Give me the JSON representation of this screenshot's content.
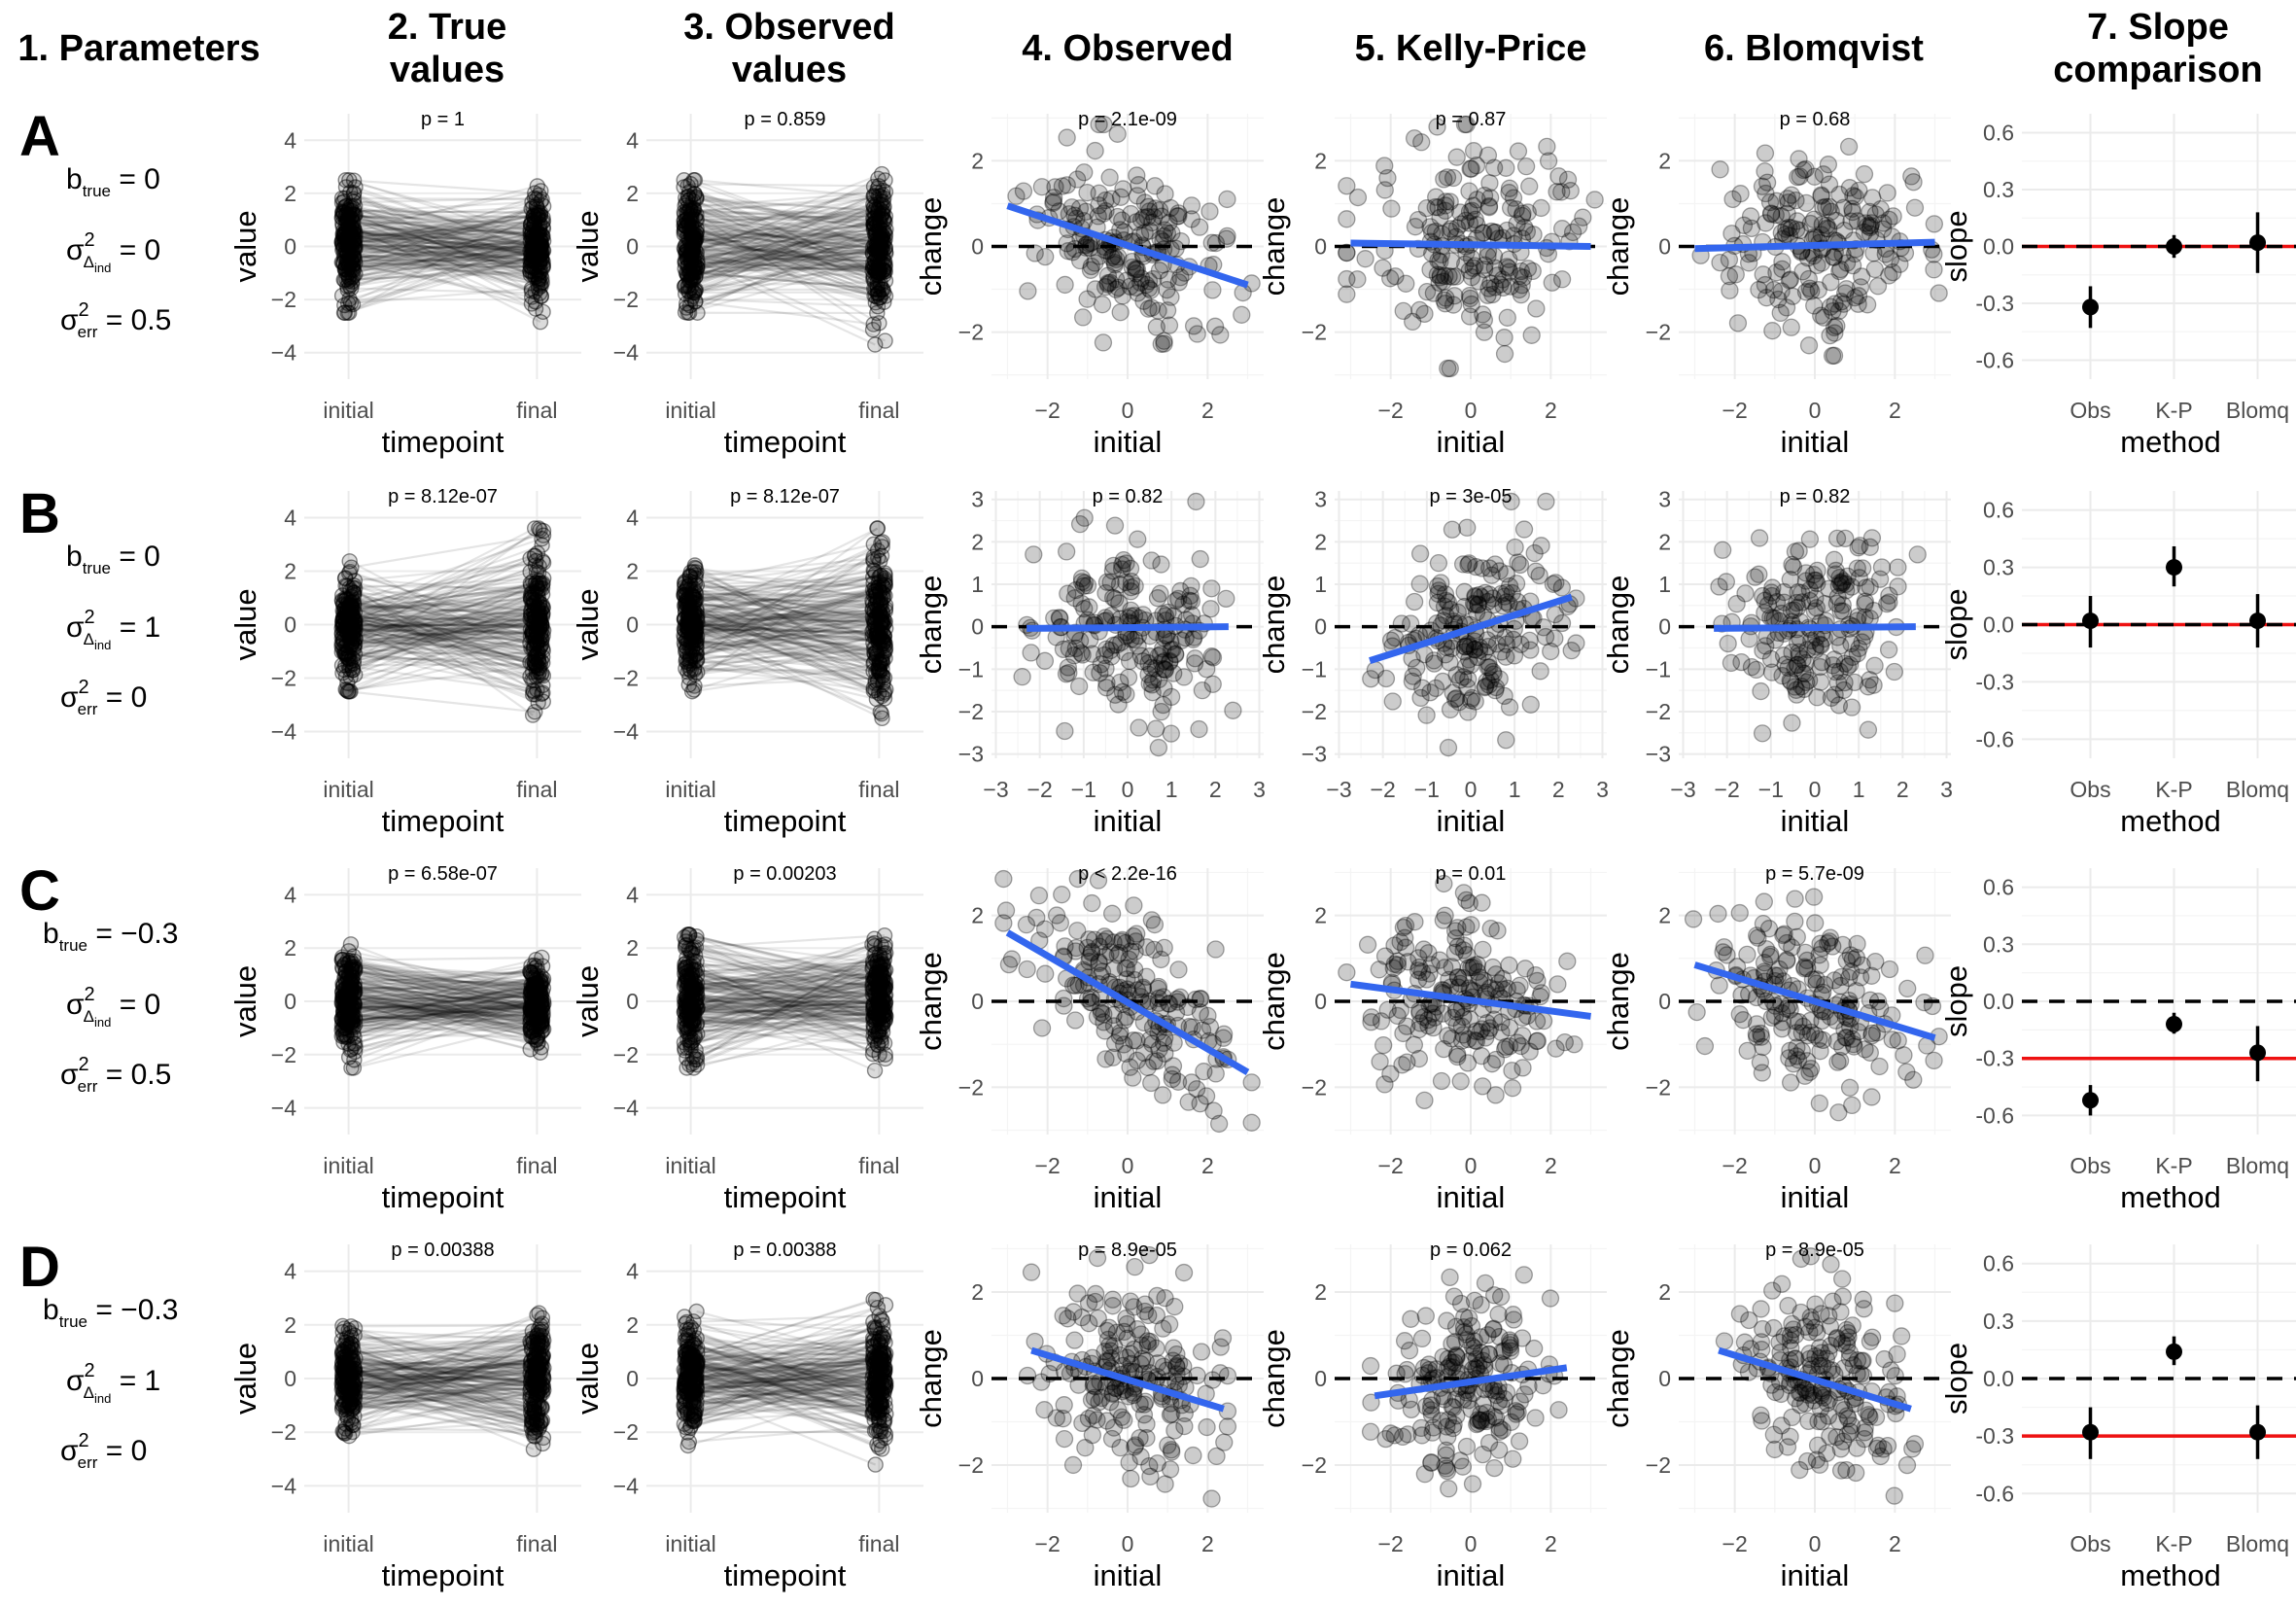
{
  "figure": {
    "column_titles": [
      [
        "1. Parameters"
      ],
      [
        "2. True",
        "values"
      ],
      [
        "3. Observed",
        "values"
      ],
      [
        "4. Observed"
      ],
      [
        "5. Kelly-Price"
      ],
      [
        "6. Blomqvist"
      ],
      [
        "7. Slope",
        "comparison"
      ]
    ],
    "rows": [
      {
        "letter": "A",
        "b_true": "0",
        "var_ind": "0",
        "var_err": "0.5"
      },
      {
        "letter": "B",
        "b_true": "0",
        "var_ind": "1",
        "var_err": "0"
      },
      {
        "letter": "C",
        "b_true": "−0.3",
        "var_ind": "0",
        "var_err": "0.5"
      },
      {
        "letter": "D",
        "b_true": "−0.3",
        "var_ind": "1",
        "var_err": "0"
      }
    ],
    "param_labels": {
      "b": "b",
      "b_sub": "true",
      "sigma": "σ",
      "sup": "2",
      "ind_sub": "Δ",
      "ind_subsub": "ind",
      "err_sub": "err",
      "eq": " = "
    }
  },
  "chart_data": [
    {
      "type": "line",
      "panel": "A2",
      "title": "p = 1",
      "xlabel": "timepoint",
      "ylabel": "value",
      "categories": [
        "initial",
        "final"
      ],
      "ylim": [
        -5,
        5
      ],
      "yticks": [
        -4,
        -2,
        0,
        2,
        4
      ],
      "initial_sd": 0.95,
      "final_sd": 0.95,
      "n_subjects": 200
    },
    {
      "type": "line",
      "panel": "A3",
      "title": "p = 0.859",
      "xlabel": "timepoint",
      "ylabel": "value",
      "categories": [
        "initial",
        "final"
      ],
      "ylim": [
        -5,
        5
      ],
      "yticks": [
        -4,
        -2,
        0,
        2,
        4
      ],
      "initial_sd": 1.2,
      "final_sd": 1.2,
      "n_subjects": 200
    },
    {
      "type": "scatter",
      "panel": "A4",
      "title": "p = 2.1e-09",
      "xlabel": "initial",
      "ylabel": "change",
      "xlim": [
        -3.4,
        3.4
      ],
      "ylim": [
        -3.1,
        3.1
      ],
      "xticks": [
        -2,
        0,
        2
      ],
      "yticks": [
        -2,
        0,
        2
      ],
      "fit": {
        "x": [
          -3,
          3
        ],
        "y": [
          0.95,
          -0.9
        ]
      },
      "reference_y": 0,
      "n_points": 200
    },
    {
      "type": "scatter",
      "panel": "A5",
      "title": "p = 0.87",
      "xlabel": "initial",
      "ylabel": "change",
      "xlim": [
        -3.4,
        3.4
      ],
      "ylim": [
        -3.1,
        3.1
      ],
      "xticks": [
        -2,
        0,
        2
      ],
      "yticks": [
        -2,
        0,
        2
      ],
      "fit": {
        "x": [
          -3,
          3
        ],
        "y": [
          0.08,
          0.0
        ]
      },
      "reference_y": 0,
      "n_points": 200
    },
    {
      "type": "scatter",
      "panel": "A6",
      "title": "p = 0.68",
      "xlabel": "initial",
      "ylabel": "change",
      "xlim": [
        -3.4,
        3.4
      ],
      "ylim": [
        -3.1,
        3.1
      ],
      "xticks": [
        -2,
        0,
        2
      ],
      "yticks": [
        -2,
        0,
        2
      ],
      "fit": {
        "x": [
          -3,
          3
        ],
        "y": [
          -0.05,
          0.1
        ]
      },
      "reference_y": 0,
      "n_points": 200
    },
    {
      "type": "scatter",
      "panel": "A7",
      "xlabel": "method",
      "ylabel": "slope",
      "categories": [
        "Obs",
        "K-P",
        "Blomq"
      ],
      "ylim": [
        -0.7,
        0.7
      ],
      "yticks": [
        -0.6,
        -0.3,
        0.0,
        0.3,
        0.6
      ],
      "ytick_labels": [
        "-0.6",
        "-0.3",
        "0.0",
        "0.3",
        "0.6"
      ],
      "estimates": [
        -0.32,
        0.0,
        0.02
      ],
      "ci_low": [
        -0.43,
        -0.06,
        -0.14
      ],
      "ci_high": [
        -0.21,
        0.06,
        0.18
      ],
      "true_slope": 0,
      "reference_y": 0
    },
    {
      "type": "line",
      "panel": "B2",
      "title": "p = 8.12e-07",
      "xlabel": "timepoint",
      "ylabel": "value",
      "categories": [
        "initial",
        "final"
      ],
      "ylim": [
        -5,
        5
      ],
      "yticks": [
        -4,
        -2,
        0,
        2,
        4
      ],
      "initial_sd": 0.95,
      "final_sd": 1.35,
      "n_subjects": 200
    },
    {
      "type": "line",
      "panel": "B3",
      "title": "p = 8.12e-07",
      "xlabel": "timepoint",
      "ylabel": "value",
      "categories": [
        "initial",
        "final"
      ],
      "ylim": [
        -5,
        5
      ],
      "yticks": [
        -4,
        -2,
        0,
        2,
        4
      ],
      "initial_sd": 0.95,
      "final_sd": 1.35,
      "n_subjects": 200
    },
    {
      "type": "scatter",
      "panel": "B4",
      "title": "p = 0.82",
      "xlabel": "initial",
      "ylabel": "change",
      "xlim": [
        -3.1,
        3.1
      ],
      "ylim": [
        -3.1,
        3.2
      ],
      "xticks": [
        -3,
        -2,
        -1,
        0,
        1,
        2,
        3
      ],
      "yticks": [
        -3,
        -2,
        -1,
        0,
        1,
        2,
        3
      ],
      "fit": {
        "x": [
          -2.3,
          2.3
        ],
        "y": [
          -0.04,
          0.0
        ]
      },
      "reference_y": 0,
      "n_points": 200
    },
    {
      "type": "scatter",
      "panel": "B5",
      "title": "p = 3e-05",
      "xlabel": "initial",
      "ylabel": "change",
      "xlim": [
        -3.1,
        3.1
      ],
      "ylim": [
        -3.1,
        3.2
      ],
      "xticks": [
        -3,
        -2,
        -1,
        0,
        1,
        2,
        3
      ],
      "yticks": [
        -3,
        -2,
        -1,
        0,
        1,
        2,
        3
      ],
      "fit": {
        "x": [
          -2.3,
          2.3
        ],
        "y": [
          -0.8,
          0.7
        ]
      },
      "reference_y": 0,
      "n_points": 200
    },
    {
      "type": "scatter",
      "panel": "B6",
      "title": "p = 0.82",
      "xlabel": "initial",
      "ylabel": "change",
      "xlim": [
        -3.1,
        3.1
      ],
      "ylim": [
        -3.1,
        3.2
      ],
      "xticks": [
        -3,
        -2,
        -1,
        0,
        1,
        2,
        3
      ],
      "yticks": [
        -3,
        -2,
        -1,
        0,
        1,
        2,
        3
      ],
      "fit": {
        "x": [
          -2.3,
          2.3
        ],
        "y": [
          -0.04,
          0.0
        ]
      },
      "reference_y": 0,
      "n_points": 200
    },
    {
      "type": "scatter",
      "panel": "B7",
      "xlabel": "method",
      "ylabel": "slope",
      "categories": [
        "Obs",
        "K-P",
        "Blomq"
      ],
      "ylim": [
        -0.7,
        0.7
      ],
      "yticks": [
        -0.6,
        -0.3,
        0.0,
        0.3,
        0.6
      ],
      "ytick_labels": [
        "-0.6",
        "-0.3",
        "0.0",
        "0.3",
        "0.6"
      ],
      "estimates": [
        0.02,
        0.3,
        0.02
      ],
      "ci_low": [
        -0.12,
        0.2,
        -0.12
      ],
      "ci_high": [
        0.15,
        0.41,
        0.16
      ],
      "true_slope": 0,
      "reference_y": 0
    },
    {
      "type": "line",
      "panel": "C2",
      "title": "p = 6.58e-07",
      "xlabel": "timepoint",
      "ylabel": "value",
      "categories": [
        "initial",
        "final"
      ],
      "ylim": [
        -5,
        5
      ],
      "yticks": [
        -4,
        -2,
        0,
        2,
        4
      ],
      "initial_sd": 0.95,
      "final_sd": 0.68,
      "n_subjects": 200
    },
    {
      "type": "line",
      "panel": "C3",
      "title": "p = 0.00203",
      "xlabel": "timepoint",
      "ylabel": "value",
      "categories": [
        "initial",
        "final"
      ],
      "ylim": [
        -5,
        5
      ],
      "yticks": [
        -4,
        -2,
        0,
        2,
        4
      ],
      "initial_sd": 1.2,
      "final_sd": 1.0,
      "n_subjects": 200
    },
    {
      "type": "scatter",
      "panel": "C4",
      "title": "p < 2.2e-16",
      "xlabel": "initial",
      "ylabel": "change",
      "xlim": [
        -3.4,
        3.4
      ],
      "ylim": [
        -3.1,
        3.1
      ],
      "xticks": [
        -2,
        0,
        2
      ],
      "yticks": [
        -2,
        0,
        2
      ],
      "fit": {
        "x": [
          -3,
          3
        ],
        "y": [
          1.6,
          -1.65
        ]
      },
      "reference_y": 0,
      "n_points": 200
    },
    {
      "type": "scatter",
      "panel": "C5",
      "title": "p = 0.01",
      "xlabel": "initial",
      "ylabel": "change",
      "xlim": [
        -3.4,
        3.4
      ],
      "ylim": [
        -3.1,
        3.1
      ],
      "xticks": [
        -2,
        0,
        2
      ],
      "yticks": [
        -2,
        0,
        2
      ],
      "fit": {
        "x": [
          -3,
          3
        ],
        "y": [
          0.4,
          -0.35
        ]
      },
      "reference_y": 0,
      "n_points": 200
    },
    {
      "type": "scatter",
      "panel": "C6",
      "title": "p = 5.7e-09",
      "xlabel": "initial",
      "ylabel": "change",
      "xlim": [
        -3.4,
        3.4
      ],
      "ylim": [
        -3.1,
        3.1
      ],
      "xticks": [
        -2,
        0,
        2
      ],
      "yticks": [
        -2,
        0,
        2
      ],
      "fit": {
        "x": [
          -3,
          3
        ],
        "y": [
          0.85,
          -0.85
        ]
      },
      "reference_y": 0,
      "n_points": 200
    },
    {
      "type": "scatter",
      "panel": "C7",
      "xlabel": "method",
      "ylabel": "slope",
      "categories": [
        "Obs",
        "K-P",
        "Blomq"
      ],
      "ylim": [
        -0.7,
        0.7
      ],
      "yticks": [
        -0.6,
        -0.3,
        0.0,
        0.3,
        0.6
      ],
      "ytick_labels": [
        "-0.6",
        "-0.3",
        "0.0",
        "0.3",
        "0.6"
      ],
      "estimates": [
        -0.52,
        -0.12,
        -0.27
      ],
      "ci_low": [
        -0.6,
        -0.17,
        -0.42
      ],
      "ci_high": [
        -0.44,
        -0.06,
        -0.13
      ],
      "true_slope": -0.3,
      "reference_y": 0
    },
    {
      "type": "line",
      "panel": "D2",
      "title": "p = 0.00388",
      "xlabel": "timepoint",
      "ylabel": "value",
      "categories": [
        "initial",
        "final"
      ],
      "ylim": [
        -5,
        5
      ],
      "yticks": [
        -4,
        -2,
        0,
        2,
        4
      ],
      "initial_sd": 0.95,
      "final_sd": 1.15,
      "n_subjects": 200
    },
    {
      "type": "line",
      "panel": "D3",
      "title": "p = 0.00388",
      "xlabel": "timepoint",
      "ylabel": "value",
      "categories": [
        "initial",
        "final"
      ],
      "ylim": [
        -5,
        5
      ],
      "yticks": [
        -4,
        -2,
        0,
        2,
        4
      ],
      "initial_sd": 0.95,
      "final_sd": 1.15,
      "n_subjects": 200
    },
    {
      "type": "scatter",
      "panel": "D4",
      "title": "p = 8.9e-05",
      "xlabel": "initial",
      "ylabel": "change",
      "xlim": [
        -3.4,
        3.4
      ],
      "ylim": [
        -3.1,
        3.1
      ],
      "xticks": [
        -2,
        0,
        2
      ],
      "yticks": [
        -2,
        0,
        2
      ],
      "fit": {
        "x": [
          -2.4,
          2.4
        ],
        "y": [
          0.65,
          -0.7
        ]
      },
      "reference_y": 0,
      "n_points": 200
    },
    {
      "type": "scatter",
      "panel": "D5",
      "title": "p = 0.062",
      "xlabel": "initial",
      "ylabel": "change",
      "xlim": [
        -3.4,
        3.4
      ],
      "ylim": [
        -3.1,
        3.1
      ],
      "xticks": [
        -2,
        0,
        2
      ],
      "yticks": [
        -2,
        0,
        2
      ],
      "fit": {
        "x": [
          -2.4,
          2.4
        ],
        "y": [
          -0.4,
          0.25
        ]
      },
      "reference_y": 0,
      "n_points": 200
    },
    {
      "type": "scatter",
      "panel": "D6",
      "title": "p = 8.9e-05",
      "xlabel": "initial",
      "ylabel": "change",
      "xlim": [
        -3.4,
        3.4
      ],
      "ylim": [
        -3.1,
        3.1
      ],
      "xticks": [
        -2,
        0,
        2
      ],
      "yticks": [
        -2,
        0,
        2
      ],
      "fit": {
        "x": [
          -2.4,
          2.4
        ],
        "y": [
          0.65,
          -0.7
        ]
      },
      "reference_y": 0,
      "n_points": 200
    },
    {
      "type": "scatter",
      "panel": "D7",
      "xlabel": "method",
      "ylabel": "slope",
      "categories": [
        "Obs",
        "K-P",
        "Blomq"
      ],
      "ylim": [
        -0.7,
        0.7
      ],
      "yticks": [
        -0.6,
        -0.3,
        0.0,
        0.3,
        0.6
      ],
      "ytick_labels": [
        "-0.6",
        "-0.3",
        "0.0",
        "0.3",
        "0.6"
      ],
      "estimates": [
        -0.28,
        0.14,
        -0.28
      ],
      "ci_low": [
        -0.42,
        0.07,
        -0.42
      ],
      "ci_high": [
        -0.15,
        0.22,
        -0.14
      ],
      "true_slope": -0.3,
      "reference_y": 0
    }
  ],
  "colors": {
    "fit_line": "#3366ee",
    "true_slope": "#ee1111",
    "reference": "#000000",
    "points": "#000000"
  }
}
